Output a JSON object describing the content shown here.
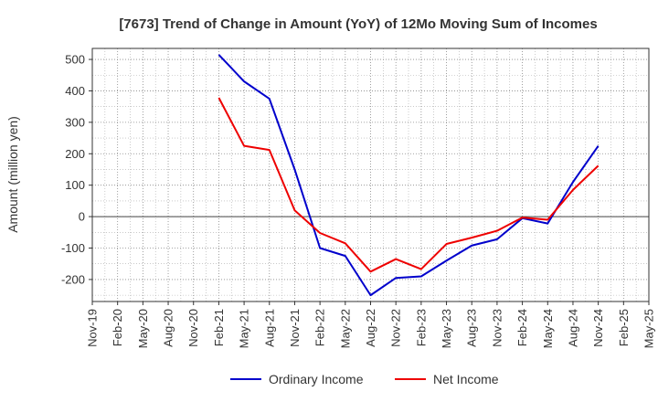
{
  "chart_data": {
    "type": "line",
    "title": "[7673]  Trend of Change in Amount (YoY) of 12Mo Moving Sum of Incomes",
    "xlabel": "",
    "ylabel": "Amount (million yen)",
    "categories": [
      "Nov-19",
      "Feb-20",
      "May-20",
      "Aug-20",
      "Nov-20",
      "Feb-21",
      "May-21",
      "Aug-21",
      "Nov-21",
      "Feb-22",
      "May-22",
      "Aug-22",
      "Nov-22",
      "Feb-23",
      "May-23",
      "Aug-23",
      "Nov-23",
      "Feb-24",
      "May-24",
      "Aug-24",
      "Nov-24",
      "Feb-25",
      "May-25"
    ],
    "yticks": [
      -200,
      -100,
      0,
      100,
      200,
      300,
      400,
      500
    ],
    "ylim": [
      -270,
      535
    ],
    "grid": true,
    "legend_position": "bottom",
    "series": [
      {
        "name": "Ordinary Income",
        "color": "#0000cc",
        "values": [
          null,
          null,
          null,
          null,
          null,
          515,
          430,
          375,
          150,
          -100,
          -125,
          -250,
          -195,
          -190,
          -140,
          -92,
          -72,
          -5,
          -22,
          110,
          225,
          null,
          null
        ]
      },
      {
        "name": "Net Income",
        "color": "#ee0000",
        "values": [
          null,
          null,
          null,
          null,
          null,
          378,
          225,
          212,
          20,
          -52,
          -85,
          -175,
          -135,
          -167,
          -87,
          -67,
          -45,
          -3,
          -10,
          85,
          162,
          null,
          null
        ]
      }
    ]
  }
}
